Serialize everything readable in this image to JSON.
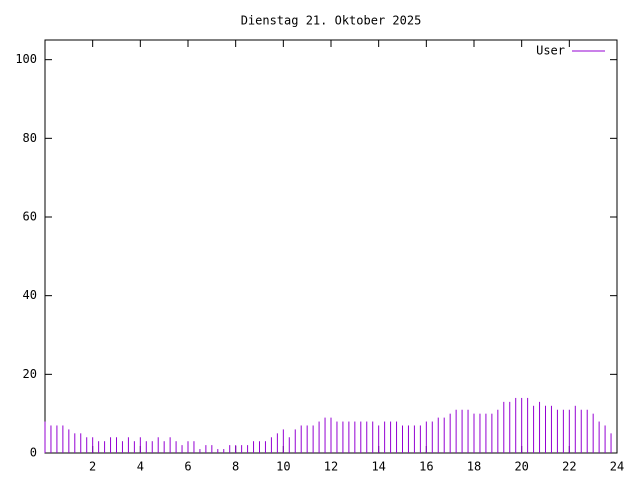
{
  "chart_data": {
    "type": "impulse",
    "title": "Dienstag 21. Oktober 2025",
    "x": [
      0,
      0.25,
      0.5,
      0.75,
      1,
      1.25,
      1.5,
      1.75,
      2,
      2.25,
      2.5,
      2.75,
      3,
      3.25,
      3.5,
      3.75,
      4,
      4.25,
      4.5,
      4.75,
      5,
      5.25,
      5.5,
      5.75,
      6,
      6.25,
      6.5,
      6.75,
      7,
      7.25,
      7.5,
      7.75,
      8,
      8.25,
      8.5,
      8.75,
      9,
      9.25,
      9.5,
      9.75,
      10,
      10.25,
      10.5,
      10.75,
      11,
      11.25,
      11.5,
      11.75,
      12,
      12.25,
      12.5,
      12.75,
      13,
      13.25,
      13.5,
      13.75,
      14,
      14.25,
      14.5,
      14.75,
      15,
      15.25,
      15.5,
      15.75,
      16,
      16.25,
      16.5,
      16.75,
      17,
      17.25,
      17.5,
      17.75,
      18,
      18.25,
      18.5,
      18.75,
      19,
      19.25,
      19.5,
      19.75,
      20,
      20.25,
      20.5,
      20.75,
      21,
      21.25,
      21.5,
      21.75,
      22,
      22.25,
      22.5,
      22.75,
      23,
      23.25,
      23.5,
      23.75
    ],
    "series": [
      {
        "name": "User",
        "color": "#9400d3",
        "values": [
          8,
          7,
          7,
          7,
          6,
          5,
          5,
          4,
          4,
          3,
          3,
          4,
          4,
          3,
          4,
          3,
          4,
          3,
          3,
          4,
          3,
          4,
          3,
          2,
          3,
          3,
          1,
          2,
          2,
          1,
          1,
          2,
          2,
          2,
          2,
          3,
          3,
          3,
          4,
          5,
          6,
          4,
          6,
          7,
          7,
          7,
          8,
          9,
          9,
          8,
          8,
          8,
          8,
          8,
          8,
          8,
          7,
          8,
          8,
          8,
          7,
          7,
          7,
          7,
          8,
          8,
          9,
          9,
          10,
          11,
          11,
          11,
          10,
          10,
          10,
          10,
          11,
          13,
          13,
          14,
          14,
          14,
          12,
          13,
          12,
          12,
          11,
          11,
          11,
          12,
          11,
          11,
          10,
          8,
          7,
          5
        ]
      }
    ],
    "xlim": [
      0,
      24
    ],
    "xticks": [
      2,
      4,
      6,
      8,
      10,
      12,
      14,
      16,
      18,
      20,
      22,
      24
    ],
    "ylim": [
      0,
      105
    ],
    "yticks": [
      0,
      20,
      40,
      60,
      80,
      100
    ],
    "legend": "top-right"
  }
}
